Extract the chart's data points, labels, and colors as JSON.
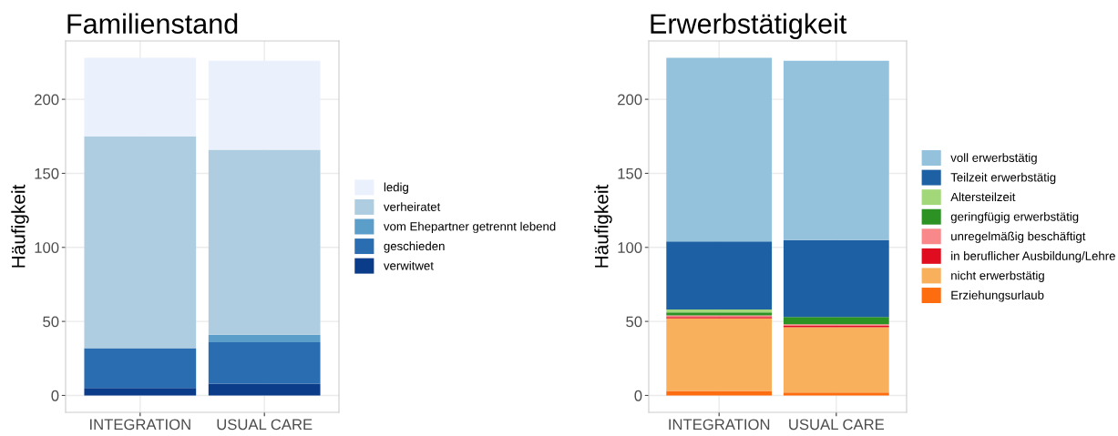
{
  "chart_data": [
    {
      "type": "bar",
      "title": "Familienstand",
      "ylabel": "Häufigkeit",
      "categories": [
        "INTEGRATION",
        "USUAL CARE"
      ],
      "stacked": true,
      "grid": true,
      "legend": "right",
      "ylim": [
        -11.4,
        239.4
      ],
      "yticks": [
        0,
        50,
        100,
        150,
        200
      ],
      "series": [
        {
          "name": "verwitwet",
          "color": "#0b3c8a",
          "values": [
            5,
            8
          ]
        },
        {
          "name": "geschieden",
          "color": "#2a6db0",
          "values": [
            27,
            28
          ]
        },
        {
          "name": "vom Ehepartner getrennt lebend",
          "color": "#5a9ec9",
          "values": [
            0,
            5
          ]
        },
        {
          "name": "verheiratet",
          "color": "#afcde1",
          "values": [
            143,
            125
          ]
        },
        {
          "name": "ledig",
          "color": "#eaf0fc",
          "values": [
            53,
            60
          ]
        }
      ]
    },
    {
      "type": "bar",
      "title": "Erwerbstätigkeit",
      "ylabel": "Häufigkeit",
      "categories": [
        "INTEGRATION",
        "USUAL CARE"
      ],
      "stacked": true,
      "grid": true,
      "legend": "right",
      "ylim": [
        -11.4,
        239.4
      ],
      "yticks": [
        0,
        50,
        100,
        150,
        200
      ],
      "series": [
        {
          "name": "Erziehungsurlaub",
          "color": "#fd6d10",
          "values": [
            3,
            2
          ]
        },
        {
          "name": "nicht erwerbstätig",
          "color": "#f8b05c",
          "values": [
            49,
            44
          ]
        },
        {
          "name": "in beruflicher Ausbildung/Lehre",
          "color": "#df0d1f",
          "values": [
            1,
            1
          ]
        },
        {
          "name": "unregelmäßig beschäftigt",
          "color": "#f8888a",
          "values": [
            1,
            1
          ]
        },
        {
          "name": "geringfügig erwerbstätig",
          "color": "#2c9224",
          "values": [
            2,
            5
          ]
        },
        {
          "name": "Altersteilzeit",
          "color": "#a3d87a",
          "values": [
            2,
            0
          ]
        },
        {
          "name": "Teilzeit erwerbstätig",
          "color": "#1d61a4",
          "values": [
            46,
            52
          ]
        },
        {
          "name": "voll erwerbstätig",
          "color": "#94c1db",
          "values": [
            124,
            121
          ]
        }
      ]
    }
  ]
}
